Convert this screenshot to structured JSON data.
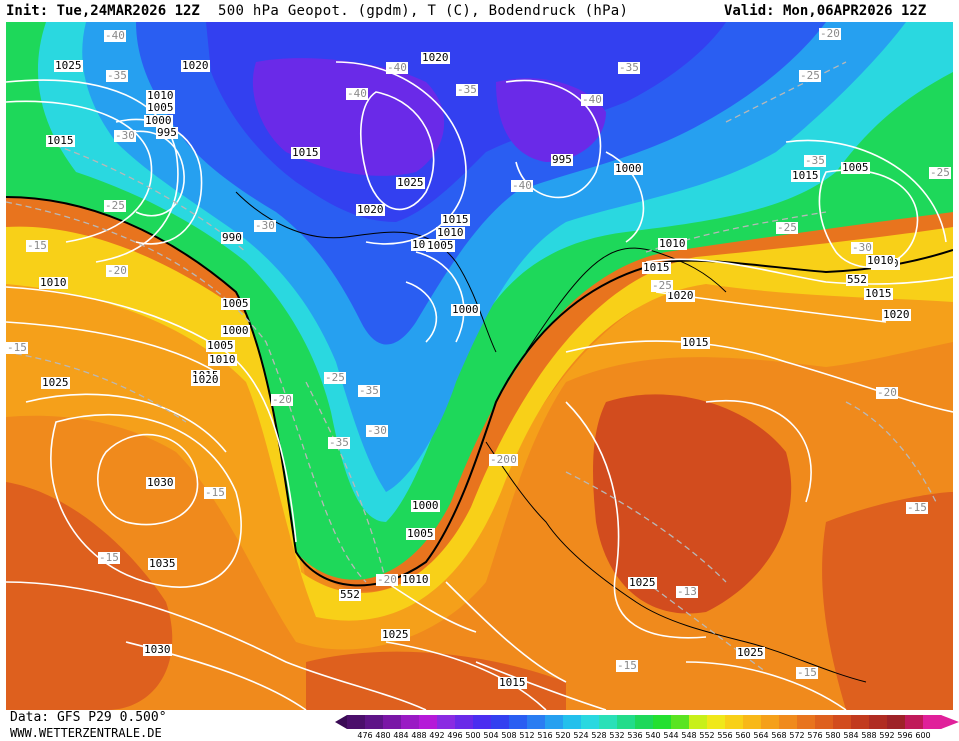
{
  "header": {
    "init": "Init: Tue,24MAR2026 12Z",
    "title": "500 hPa Geopot. (gpdm), T (C), Bodendruck (hPa)",
    "valid": "Valid: Mon,06APR2026 12Z"
  },
  "footer": {
    "data_source": "Data: GFS P29 0.500°",
    "website": "WWW.WETTERZENTRALE.DE"
  },
  "colorbar": {
    "labels": [
      "476",
      "480",
      "484",
      "488",
      "492",
      "496",
      "500",
      "504",
      "508",
      "512",
      "516",
      "520",
      "524",
      "528",
      "532",
      "536",
      "540",
      "544",
      "548",
      "552",
      "556",
      "560",
      "564",
      "568",
      "572",
      "576",
      "580",
      "584",
      "588",
      "592",
      "596",
      "600"
    ],
    "colors": [
      "#4b0f6b",
      "#5e1487",
      "#7a16a6",
      "#9a1ac4",
      "#b51ad8",
      "#8a2be2",
      "#6a2ae8",
      "#4b2ef0",
      "#3340f0",
      "#2a5ef2",
      "#2a7df2",
      "#26a0f0",
      "#23c0ec",
      "#2ad8e0",
      "#2ae0b8",
      "#22dc8a",
      "#1ed85a",
      "#24e030",
      "#5ae422",
      "#c8f01a",
      "#f0e81a",
      "#f8d018",
      "#f8b818",
      "#f5a01a",
      "#f08a1c",
      "#e8741e",
      "#de601e",
      "#d24c1e",
      "#c23a1e",
      "#b02c22",
      "#9e2228",
      "#c01a5a",
      "#e0209a"
    ]
  },
  "map_labels": {
    "pressure": [
      "1025",
      "1020",
      "1010",
      "1005",
      "1000",
      "995",
      "1015",
      "1015",
      "1020",
      "1025",
      "1020",
      "990",
      "1015",
      "1010",
      "1005",
      "1000",
      "1000",
      "995",
      "1000",
      "1010",
      "1005",
      "1015",
      "1010",
      "1010",
      "1005",
      "1000",
      "1005",
      "1010",
      "1015",
      "1020",
      "1025",
      "1030",
      "1035",
      "1030",
      "1025",
      "1015",
      "1015",
      "1025",
      "1025",
      "1020",
      "1020",
      "1015",
      "1010",
      "1010",
      "1015",
      "1005",
      "1005"
    ],
    "temperature": [
      "-40",
      "-35",
      "-30",
      "-25",
      "-15",
      "-20",
      "-40",
      "-40",
      "-35",
      "-40",
      "-40",
      "-30",
      "-35",
      "-25",
      "-20",
      "-25",
      "-35",
      "-30",
      "-35",
      "-20",
      "-25",
      "-20",
      "-15",
      "-15",
      "-15",
      "-15",
      "-13",
      "-15",
      "-15",
      "-20",
      "-25",
      "-30",
      "-25",
      "-35",
      "-20",
      "-20"
    ],
    "geopotential": [
      "552",
      "552"
    ]
  }
}
